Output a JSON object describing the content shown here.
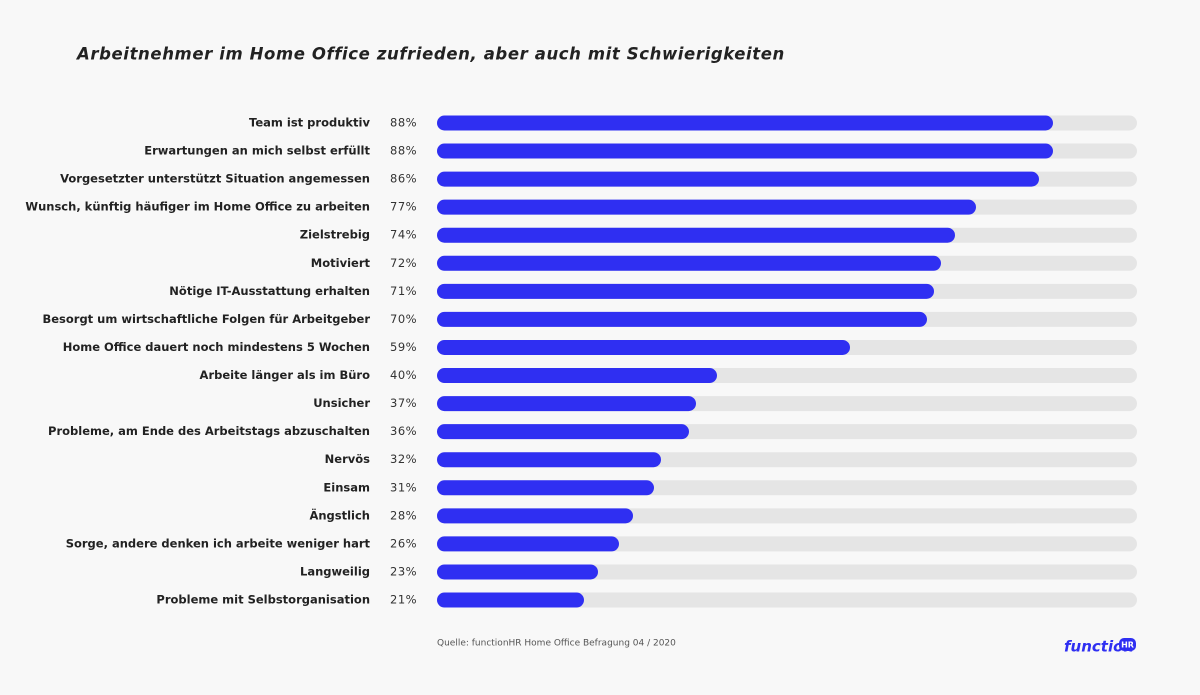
{
  "chart_data": {
    "type": "hbar",
    "title": "Arbeitnehmer im Home Office zufrieden, aber auch mit Schwierigkeiten",
    "categories": [
      "Team ist produktiv",
      "Erwartungen an mich selbst erfüllt",
      "Vorgesetzter unterstützt Situation angemessen",
      "Wunsch, künftig häufiger im Home Office zu arbeiten",
      "Zielstrebig",
      "Motiviert",
      "Nötige IT-Ausstattung erhalten",
      "Besorgt um wirtschaftliche Folgen für Arbeitgeber",
      "Home Office dauert noch mindestens 5 Wochen",
      "Arbeite länger als im Büro",
      "Unsicher",
      "Probleme, am Ende des Arbeitstags abzuschalten",
      "Nervös",
      "Einsam",
      "Ängstlich",
      "Sorge, andere denken ich arbeite weniger hart",
      "Langweilig",
      "Probleme mit Selbstorganisation"
    ],
    "values": [
      88,
      88,
      86,
      77,
      74,
      72,
      71,
      70,
      59,
      40,
      37,
      36,
      32,
      31,
      28,
      26,
      23,
      21
    ],
    "value_labels": [
      "88%",
      "88%",
      "86%",
      "77%",
      "74%",
      "72%",
      "71%",
      "70%",
      "59%",
      "40%",
      "37%",
      "36%",
      "32%",
      "31%",
      "28%",
      "26%",
      "23%",
      "21%"
    ],
    "xlim": [
      0,
      100
    ],
    "color": "#2f2ff2",
    "track_color": "#e5e5e5",
    "source": "Quelle: functionHR Home Office Befragung 04 / 2020",
    "logo": {
      "text": "function",
      "badge": "HR"
    }
  }
}
